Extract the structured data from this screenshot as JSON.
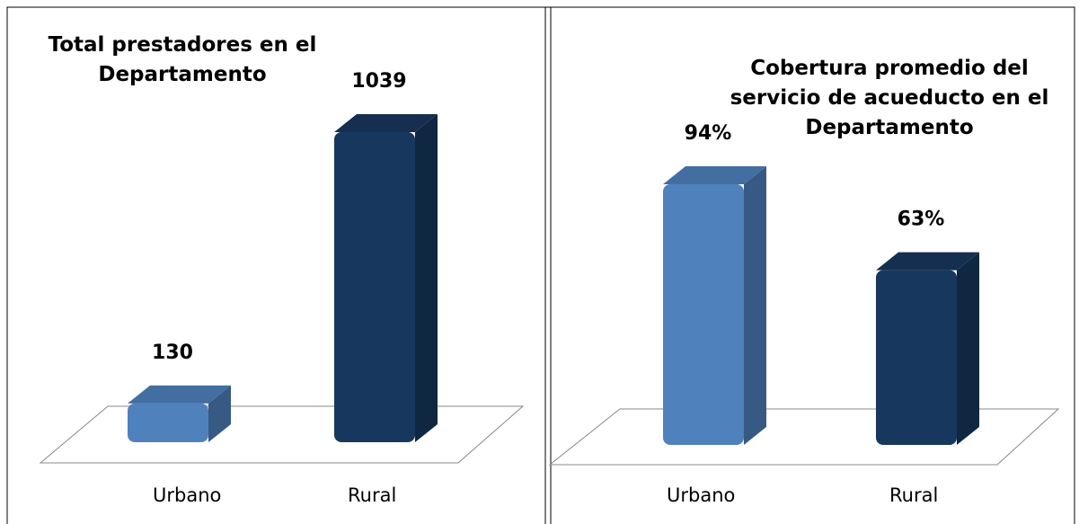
{
  "chart_data": [
    {
      "type": "bar3d",
      "title": "Total prestadores en el Departamento",
      "categories": [
        "Urbano",
        "Rural"
      ],
      "values": [
        130,
        1039
      ],
      "colors": [
        "#4f81bd",
        "#17375e"
      ]
    },
    {
      "type": "bar3d",
      "title": "Cobertura promedio del servicio de acueducto en el Departamento",
      "categories": [
        "Urbano",
        "Rural"
      ],
      "values": [
        94,
        63
      ],
      "value_labels": [
        "94%",
        "63%"
      ],
      "colors": [
        "#4f81bd",
        "#17375e"
      ]
    }
  ]
}
